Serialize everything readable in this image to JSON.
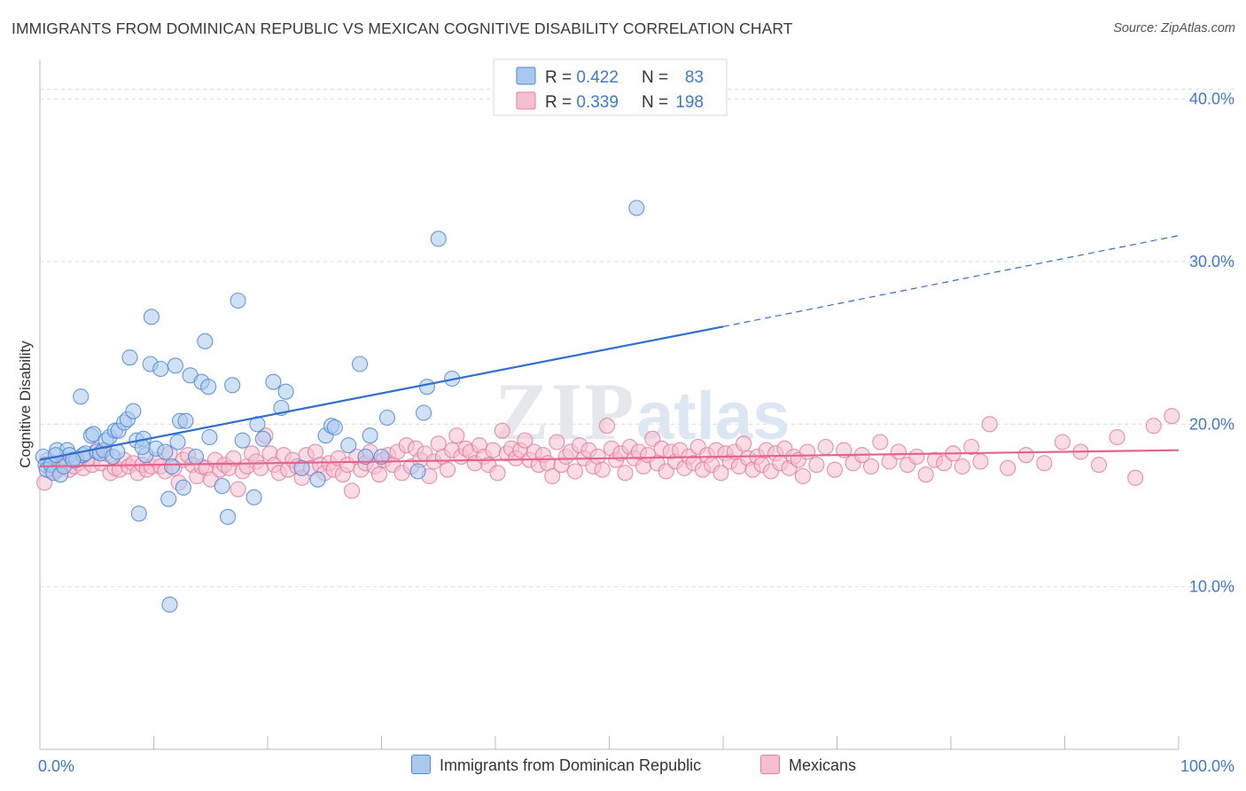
{
  "title": "IMMIGRANTS FROM DOMINICAN REPUBLIC VS MEXICAN COGNITIVE DISABILITY CORRELATION CHART",
  "source": "Source: ZipAtlas.com",
  "watermark": {
    "main": "ZIP",
    "sub": "atlas"
  },
  "legend_stats": [
    {
      "r_label": "R = ",
      "r_value": "0.422",
      "n_label": "N = ",
      "n_value": "83"
    },
    {
      "r_label": "R = ",
      "r_value": "0.339",
      "n_label": "N = ",
      "n_value": "198"
    }
  ],
  "chart_data": {
    "type": "scatter",
    "title": "IMMIGRANTS FROM DOMINICAN REPUBLIC VS MEXICAN COGNITIVE DISABILITY CORRELATION CHART",
    "xlabel": "",
    "ylabel": "Cognitive Disability",
    "xlim": [
      0,
      100
    ],
    "ylim": [
      0,
      42
    ],
    "x_tick_labels": [
      "0.0%",
      "100.0%"
    ],
    "y_ticks": [
      10,
      20,
      30,
      40
    ],
    "y_tick_labels": [
      "10.0%",
      "20.0%",
      "30.0%",
      "40.0%"
    ],
    "grid": "horizontal dashed",
    "legend": "top-center and bottom",
    "colors": {
      "blue_fill": "#a9c8ee",
      "blue_stroke": "#4b8ad6",
      "blue_line": "#2f6fcd",
      "pink_fill": "#f6bfd0",
      "pink_stroke": "#e87ba0",
      "pink_line": "#e2648f",
      "tick_text": "#3c78d8"
    },
    "series": [
      {
        "name": "Immigrants from Dominican Republic",
        "color": "#4b8ad6",
        "r": 0.422,
        "n": 83,
        "trend": {
          "x0": 0,
          "y0": 17.8,
          "x1": 60,
          "y1": 26.0,
          "dashed_to_x": 100,
          "dashed_to_y": 31.6
        },
        "points": [
          [
            0.3,
            18.0
          ],
          [
            0.5,
            17.5
          ],
          [
            0.6,
            17.2
          ],
          [
            1.0,
            17.5
          ],
          [
            1.2,
            17.0
          ],
          [
            1.5,
            18.4
          ],
          [
            1.8,
            16.9
          ],
          [
            2.1,
            17.4
          ],
          [
            2.4,
            18.4
          ],
          [
            2.6,
            18.1
          ],
          [
            3.2,
            17.8
          ],
          [
            3.6,
            21.7
          ],
          [
            3.8,
            18.1
          ],
          [
            4.0,
            18.2
          ],
          [
            4.5,
            19.3
          ],
          [
            4.7,
            19.4
          ],
          [
            5.0,
            18.3
          ],
          [
            5.3,
            18.2
          ],
          [
            5.6,
            18.4
          ],
          [
            5.8,
            19.0
          ],
          [
            6.1,
            19.2
          ],
          [
            6.4,
            18.0
          ],
          [
            6.6,
            19.6
          ],
          [
            6.9,
            19.6
          ],
          [
            7.4,
            20.1
          ],
          [
            7.7,
            20.3
          ],
          [
            7.9,
            24.1
          ],
          [
            8.2,
            20.8
          ],
          [
            8.5,
            19.0
          ],
          [
            8.7,
            14.5
          ],
          [
            9.1,
            19.1
          ],
          [
            9.3,
            18.1
          ],
          [
            9.7,
            23.7
          ],
          [
            9.8,
            26.6
          ],
          [
            10.2,
            18.5
          ],
          [
            10.6,
            23.4
          ],
          [
            11.0,
            18.3
          ],
          [
            11.3,
            15.4
          ],
          [
            11.6,
            17.4
          ],
          [
            11.9,
            23.6
          ],
          [
            12.1,
            18.9
          ],
          [
            12.3,
            20.2
          ],
          [
            12.6,
            16.1
          ],
          [
            12.8,
            20.2
          ],
          [
            13.2,
            23.0
          ],
          [
            13.7,
            18.0
          ],
          [
            14.2,
            22.6
          ],
          [
            14.5,
            25.1
          ],
          [
            14.8,
            22.3
          ],
          [
            14.9,
            19.2
          ],
          [
            16.0,
            16.2
          ],
          [
            16.5,
            14.3
          ],
          [
            16.9,
            22.4
          ],
          [
            17.4,
            27.6
          ],
          [
            17.8,
            19.0
          ],
          [
            18.8,
            15.5
          ],
          [
            19.1,
            20.0
          ],
          [
            19.6,
            19.1
          ],
          [
            20.5,
            22.6
          ],
          [
            21.2,
            21.0
          ],
          [
            21.6,
            22.0
          ],
          [
            23.0,
            17.3
          ],
          [
            24.4,
            16.6
          ],
          [
            25.1,
            19.3
          ],
          [
            25.6,
            19.9
          ],
          [
            25.9,
            19.8
          ],
          [
            27.1,
            18.7
          ],
          [
            28.1,
            23.7
          ],
          [
            28.6,
            18.0
          ],
          [
            29.0,
            19.3
          ],
          [
            30.0,
            18.0
          ],
          [
            30.5,
            20.4
          ],
          [
            33.2,
            17.1
          ],
          [
            33.7,
            20.7
          ],
          [
            34.0,
            22.3
          ],
          [
            35.0,
            31.4
          ],
          [
            36.2,
            22.8
          ],
          [
            52.4,
            33.3
          ],
          [
            11.4,
            8.9
          ],
          [
            6.8,
            18.3
          ],
          [
            2.9,
            17.8
          ],
          [
            1.4,
            18.1
          ],
          [
            9.0,
            18.6
          ]
        ]
      },
      {
        "name": "Mexicans",
        "color": "#e87ba0",
        "r": 0.339,
        "n": 198,
        "trend": {
          "x0": 0,
          "y0": 17.4,
          "x1": 100,
          "y1": 18.4
        },
        "points": [
          [
            0.4,
            16.4
          ],
          [
            0.7,
            17.8
          ],
          [
            1.0,
            17.1
          ],
          [
            1.3,
            17.6
          ],
          [
            1.6,
            17.2
          ],
          [
            2.0,
            17.5
          ],
          [
            2.3,
            17.8
          ],
          [
            2.6,
            17.2
          ],
          [
            3.0,
            17.4
          ],
          [
            3.4,
            17.6
          ],
          [
            3.8,
            17.3
          ],
          [
            4.2,
            17.9
          ],
          [
            4.6,
            17.5
          ],
          [
            5.0,
            18.4
          ],
          [
            5.4,
            17.6
          ],
          [
            5.8,
            18.2
          ],
          [
            6.2,
            17.0
          ],
          [
            6.6,
            17.3
          ],
          [
            7.0,
            17.2
          ],
          [
            7.4,
            17.8
          ],
          [
            7.8,
            17.4
          ],
          [
            8.2,
            17.6
          ],
          [
            8.6,
            17.0
          ],
          [
            9.0,
            17.5
          ],
          [
            9.4,
            17.2
          ],
          [
            9.8,
            17.4
          ],
          [
            10.2,
            17.8
          ],
          [
            10.6,
            17.4
          ],
          [
            11.0,
            17.1
          ],
          [
            11.4,
            18.2
          ],
          [
            11.8,
            17.3
          ],
          [
            12.2,
            16.4
          ],
          [
            12.6,
            17.8
          ],
          [
            13.0,
            18.1
          ],
          [
            13.4,
            17.5
          ],
          [
            13.8,
            16.8
          ],
          [
            14.2,
            17.4
          ],
          [
            14.6,
            17.3
          ],
          [
            15.0,
            16.6
          ],
          [
            15.4,
            17.8
          ],
          [
            15.8,
            17.2
          ],
          [
            16.2,
            17.5
          ],
          [
            16.6,
            17.3
          ],
          [
            17.0,
            17.9
          ],
          [
            17.4,
            16.0
          ],
          [
            17.8,
            17.1
          ],
          [
            18.2,
            17.4
          ],
          [
            18.6,
            18.2
          ],
          [
            19.0,
            17.7
          ],
          [
            19.4,
            17.3
          ],
          [
            19.8,
            19.3
          ],
          [
            20.2,
            18.2
          ],
          [
            20.6,
            17.5
          ],
          [
            21.0,
            17.0
          ],
          [
            21.4,
            18.1
          ],
          [
            21.8,
            17.2
          ],
          [
            22.2,
            17.8
          ],
          [
            22.6,
            17.4
          ],
          [
            23.0,
            16.7
          ],
          [
            23.4,
            18.1
          ],
          [
            23.8,
            17.3
          ],
          [
            24.2,
            18.3
          ],
          [
            24.6,
            17.5
          ],
          [
            25.0,
            17.0
          ],
          [
            25.4,
            17.6
          ],
          [
            25.8,
            17.2
          ],
          [
            26.2,
            17.9
          ],
          [
            26.6,
            16.9
          ],
          [
            27.0,
            17.5
          ],
          [
            27.4,
            15.9
          ],
          [
            27.8,
            18.0
          ],
          [
            28.2,
            17.2
          ],
          [
            28.6,
            17.6
          ],
          [
            29.0,
            18.3
          ],
          [
            29.4,
            17.4
          ],
          [
            29.8,
            16.9
          ],
          [
            30.2,
            17.8
          ],
          [
            30.6,
            18.1
          ],
          [
            31.0,
            17.5
          ],
          [
            31.4,
            18.3
          ],
          [
            31.8,
            17.0
          ],
          [
            32.2,
            18.7
          ],
          [
            32.6,
            17.4
          ],
          [
            33.0,
            18.5
          ],
          [
            33.4,
            17.8
          ],
          [
            33.8,
            18.2
          ],
          [
            34.2,
            16.8
          ],
          [
            34.6,
            17.7
          ],
          [
            35.0,
            18.8
          ],
          [
            35.4,
            18.0
          ],
          [
            35.8,
            17.2
          ],
          [
            36.2,
            18.4
          ],
          [
            36.6,
            19.3
          ],
          [
            37.0,
            18.0
          ],
          [
            37.4,
            18.5
          ],
          [
            37.8,
            18.3
          ],
          [
            38.2,
            17.6
          ],
          [
            38.6,
            18.7
          ],
          [
            39.0,
            18.0
          ],
          [
            39.4,
            17.5
          ],
          [
            39.8,
            18.4
          ],
          [
            40.2,
            17.0
          ],
          [
            40.6,
            19.6
          ],
          [
            41.0,
            18.2
          ],
          [
            41.4,
            18.5
          ],
          [
            41.8,
            17.9
          ],
          [
            42.2,
            18.4
          ],
          [
            42.6,
            19.0
          ],
          [
            43.0,
            17.8
          ],
          [
            43.4,
            18.3
          ],
          [
            43.8,
            17.5
          ],
          [
            44.2,
            18.1
          ],
          [
            44.6,
            17.6
          ],
          [
            45.0,
            16.8
          ],
          [
            45.4,
            18.9
          ],
          [
            45.8,
            17.5
          ],
          [
            46.2,
            18.0
          ],
          [
            46.6,
            18.3
          ],
          [
            47.0,
            17.1
          ],
          [
            47.4,
            18.7
          ],
          [
            47.8,
            17.9
          ],
          [
            48.2,
            18.4
          ],
          [
            48.6,
            17.4
          ],
          [
            49.0,
            18.0
          ],
          [
            49.4,
            17.2
          ],
          [
            49.8,
            19.9
          ],
          [
            50.2,
            18.5
          ],
          [
            50.6,
            17.8
          ],
          [
            51.0,
            18.2
          ],
          [
            51.4,
            17.0
          ],
          [
            51.8,
            18.6
          ],
          [
            52.2,
            17.9
          ],
          [
            52.6,
            18.3
          ],
          [
            53.0,
            17.4
          ],
          [
            53.4,
            18.1
          ],
          [
            53.8,
            19.1
          ],
          [
            54.2,
            17.6
          ],
          [
            54.6,
            18.5
          ],
          [
            55.0,
            17.1
          ],
          [
            55.4,
            18.3
          ],
          [
            55.8,
            17.7
          ],
          [
            56.2,
            18.4
          ],
          [
            56.6,
            17.3
          ],
          [
            57.0,
            18.0
          ],
          [
            57.4,
            17.6
          ],
          [
            57.8,
            18.6
          ],
          [
            58.2,
            17.2
          ],
          [
            58.6,
            18.1
          ],
          [
            59.0,
            17.5
          ],
          [
            59.4,
            18.4
          ],
          [
            59.8,
            17.0
          ],
          [
            60.2,
            18.2
          ],
          [
            60.6,
            17.7
          ],
          [
            61.0,
            18.3
          ],
          [
            61.4,
            17.4
          ],
          [
            61.8,
            18.8
          ],
          [
            62.2,
            17.9
          ],
          [
            62.6,
            17.2
          ],
          [
            63.0,
            18.0
          ],
          [
            63.4,
            17.5
          ],
          [
            63.8,
            18.4
          ],
          [
            64.2,
            17.1
          ],
          [
            64.6,
            18.2
          ],
          [
            65.0,
            17.6
          ],
          [
            65.4,
            18.5
          ],
          [
            65.8,
            17.3
          ],
          [
            66.2,
            18.0
          ],
          [
            66.6,
            17.8
          ],
          [
            67.0,
            16.8
          ],
          [
            67.4,
            18.3
          ],
          [
            68.2,
            17.5
          ],
          [
            69.0,
            18.6
          ],
          [
            69.8,
            17.2
          ],
          [
            70.6,
            18.4
          ],
          [
            71.4,
            17.6
          ],
          [
            72.2,
            18.1
          ],
          [
            73.0,
            17.4
          ],
          [
            73.8,
            18.9
          ],
          [
            74.6,
            17.7
          ],
          [
            75.4,
            18.3
          ],
          [
            76.2,
            17.5
          ],
          [
            77.0,
            18.0
          ],
          [
            77.8,
            16.9
          ],
          [
            78.6,
            17.8
          ],
          [
            79.4,
            17.6
          ],
          [
            80.2,
            18.2
          ],
          [
            81.0,
            17.4
          ],
          [
            81.8,
            18.6
          ],
          [
            82.6,
            17.7
          ],
          [
            83.4,
            20.0
          ],
          [
            85.0,
            17.3
          ],
          [
            86.6,
            18.1
          ],
          [
            88.2,
            17.6
          ],
          [
            89.8,
            18.9
          ],
          [
            91.4,
            18.3
          ],
          [
            93.0,
            17.5
          ],
          [
            94.6,
            19.2
          ],
          [
            96.2,
            16.7
          ],
          [
            97.8,
            19.9
          ],
          [
            99.4,
            20.5
          ]
        ]
      }
    ]
  }
}
